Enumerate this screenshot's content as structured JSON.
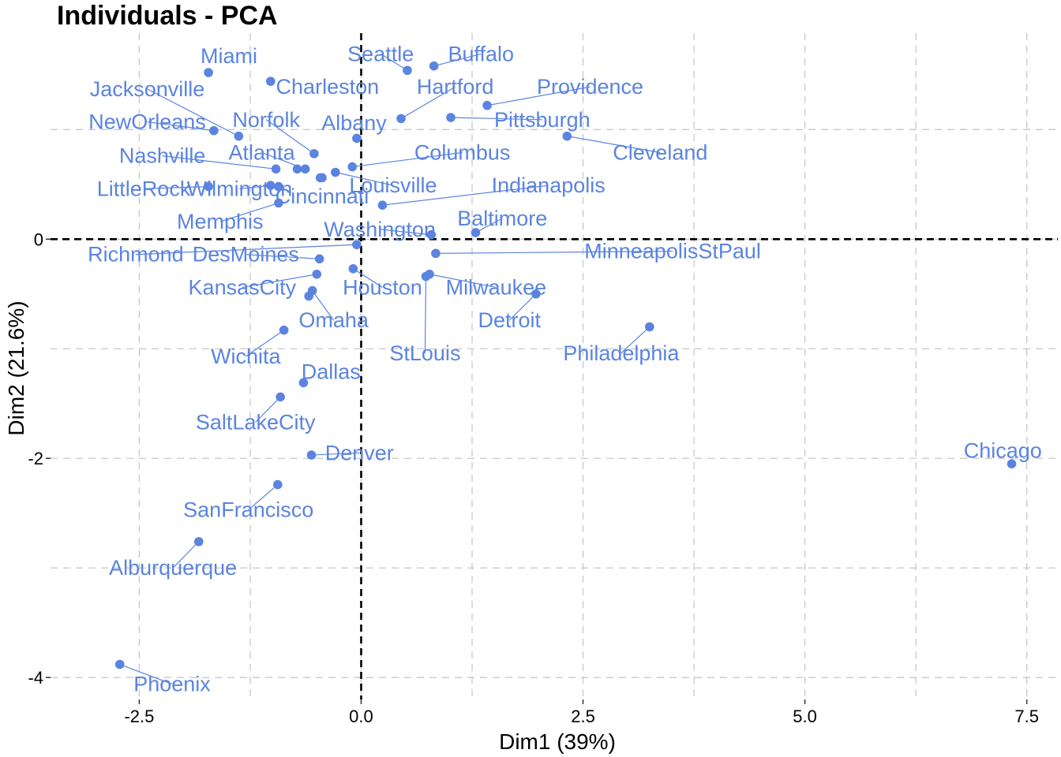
{
  "chart_data": {
    "type": "scatter",
    "title": "Individuals - PCA",
    "xlabel": "Dim1 (39%)",
    "ylabel": "Dim2 (21.6%)",
    "xlim": [
      -3.5,
      7.85
    ],
    "ylim": [
      -4.2,
      1.88
    ],
    "xticks": [
      -2.5,
      0.0,
      2.5,
      5.0,
      7.5
    ],
    "xtick_labels": [
      "-2.5",
      "0.0",
      "2.5",
      "5.0",
      "7.5"
    ],
    "yticks": [
      -4,
      -2,
      0
    ],
    "ytick_labels": [
      "-4",
      "-2",
      "0"
    ],
    "grid": true,
    "point_color": "#5b84e0",
    "points": [
      {
        "name": "Miami",
        "x": -1.72,
        "y": 1.52,
        "lx": -1.49,
        "ly": 1.67,
        "anchor": "middle"
      },
      {
        "name": "Charleston",
        "x": -1.02,
        "y": 1.44,
        "lx": -0.96,
        "ly": 1.39,
        "anchor": "start"
      },
      {
        "name": "Seattle",
        "x": 0.52,
        "y": 1.54,
        "lx": 0.22,
        "ly": 1.69,
        "anchor": "middle"
      },
      {
        "name": "Buffalo",
        "x": 0.82,
        "y": 1.58,
        "lx": 1.35,
        "ly": 1.69,
        "anchor": "middle"
      },
      {
        "name": "Jacksonville",
        "x": -1.38,
        "y": 0.94,
        "lx": -2.41,
        "ly": 1.37,
        "anchor": "middle"
      },
      {
        "name": "Hartford",
        "x": 0.45,
        "y": 1.1,
        "lx": 1.06,
        "ly": 1.39,
        "anchor": "middle"
      },
      {
        "name": "Providence",
        "x": 1.42,
        "y": 1.22,
        "lx": 2.58,
        "ly": 1.39,
        "anchor": "middle"
      },
      {
        "name": "NewOrleans",
        "x": -1.66,
        "y": 0.99,
        "lx": -2.41,
        "ly": 1.07,
        "anchor": "middle"
      },
      {
        "name": "Norfolk",
        "x": -0.53,
        "y": 0.78,
        "lx": -1.07,
        "ly": 1.09,
        "anchor": "middle"
      },
      {
        "name": "Albany",
        "x": -0.05,
        "y": 0.92,
        "lx": -0.08,
        "ly": 1.06,
        "anchor": "middle"
      },
      {
        "name": "Pittsburgh",
        "x": 1.01,
        "y": 1.11,
        "lx": 2.04,
        "ly": 1.09,
        "anchor": "middle"
      },
      {
        "name": "Cleveland",
        "x": 2.32,
        "y": 0.94,
        "lx": 3.37,
        "ly": 0.79,
        "anchor": "middle"
      },
      {
        "name": "Atlanta",
        "x": -0.63,
        "y": 0.64,
        "lx": -1.12,
        "ly": 0.79,
        "anchor": "middle"
      },
      {
        "name": "Columbus",
        "x": -0.1,
        "y": 0.66,
        "lx": 1.14,
        "ly": 0.79,
        "anchor": "middle"
      },
      {
        "name": "Nashville",
        "x": -0.96,
        "y": 0.64,
        "lx": -2.24,
        "ly": 0.76,
        "anchor": "middle"
      },
      {
        "name": "Louisville",
        "x": -0.29,
        "y": 0.61,
        "lx": 0.36,
        "ly": 0.49,
        "anchor": "middle"
      },
      {
        "name": "Indianapolis",
        "x": 0.24,
        "y": 0.31,
        "lx": 2.11,
        "ly": 0.49,
        "anchor": "middle"
      },
      {
        "name": "LittleRock",
        "x": -1.72,
        "y": 0.48,
        "lx": -2.45,
        "ly": 0.46,
        "anchor": "middle"
      },
      {
        "name": "Wilmington",
        "x": -1.02,
        "y": 0.49,
        "lx": -1.37,
        "ly": 0.46,
        "anchor": "middle"
      },
      {
        "name": "Cincinnati",
        "x": -0.44,
        "y": 0.56,
        "lx": -0.44,
        "ly": 0.39,
        "anchor": "middle"
      },
      {
        "name": "Memphis",
        "x": -0.93,
        "y": 0.33,
        "lx": -1.59,
        "ly": 0.16,
        "anchor": "middle"
      },
      {
        "name": "Baltimore",
        "x": 1.29,
        "y": 0.06,
        "lx": 1.59,
        "ly": 0.19,
        "anchor": "middle"
      },
      {
        "name": "Washington",
        "x": 0.79,
        "y": 0.04,
        "lx": 0.21,
        "ly": 0.09,
        "anchor": "middle"
      },
      {
        "name": "MinneapolisStPaul",
        "x": 0.84,
        "y": -0.13,
        "lx": 3.51,
        "ly": -0.11,
        "anchor": "middle"
      },
      {
        "name": "Richmond",
        "x": -0.05,
        "y": -0.05,
        "lx": -2.54,
        "ly": -0.14,
        "anchor": "middle"
      },
      {
        "name": "DesMoines",
        "x": -0.47,
        "y": -0.18,
        "lx": -1.3,
        "ly": -0.14,
        "anchor": "middle"
      },
      {
        "name": "Milwaukee",
        "x": 0.77,
        "y": -0.32,
        "lx": 1.52,
        "ly": -0.44,
        "anchor": "middle"
      },
      {
        "name": "KansasCity",
        "x": -0.5,
        "y": -0.32,
        "lx": -1.34,
        "ly": -0.44,
        "anchor": "middle"
      },
      {
        "name": "Houston",
        "x": -0.09,
        "y": -0.27,
        "lx": 0.24,
        "ly": -0.44,
        "anchor": "middle"
      },
      {
        "name": "Omaha",
        "x": -0.55,
        "y": -0.47,
        "lx": -0.31,
        "ly": -0.74,
        "anchor": "middle"
      },
      {
        "name": "Detroit",
        "x": 1.97,
        "y": -0.5,
        "lx": 1.67,
        "ly": -0.74,
        "anchor": "middle"
      },
      {
        "name": "StLouis",
        "x": 0.73,
        "y": -0.34,
        "lx": 0.72,
        "ly": -1.04,
        "anchor": "middle"
      },
      {
        "name": "Philadelphia",
        "x": 3.25,
        "y": -0.8,
        "lx": 2.93,
        "ly": -1.04,
        "anchor": "middle"
      },
      {
        "name": "Wichita",
        "x": -0.87,
        "y": -0.83,
        "lx": -1.3,
        "ly": -1.07,
        "anchor": "middle"
      },
      {
        "name": "Dallas",
        "x": -0.65,
        "y": -1.31,
        "lx": -0.34,
        "ly": -1.21,
        "anchor": "middle"
      },
      {
        "name": "SaltLakeCity",
        "x": -0.91,
        "y": -1.44,
        "lx": -1.19,
        "ly": -1.67,
        "anchor": "middle"
      },
      {
        "name": "Denver",
        "x": -0.56,
        "y": -1.97,
        "lx": -0.02,
        "ly": -1.95,
        "anchor": "middle"
      },
      {
        "name": "Chicago",
        "x": 7.33,
        "y": -2.05,
        "lx": 7.23,
        "ly": -1.93,
        "anchor": "middle"
      },
      {
        "name": "SanFrancisco",
        "x": -0.94,
        "y": -2.24,
        "lx": -1.27,
        "ly": -2.47,
        "anchor": "middle"
      },
      {
        "name": "Alburquerque",
        "x": -1.83,
        "y": -2.76,
        "lx": -2.12,
        "ly": -3.0,
        "anchor": "middle"
      },
      {
        "name": "Phoenix",
        "x": -2.72,
        "y": -3.88,
        "lx": -2.13,
        "ly": -4.06,
        "anchor": "middle"
      }
    ],
    "extra_points": [
      {
        "x": -0.72,
        "y": 0.64
      },
      {
        "x": -0.46,
        "y": 0.56
      },
      {
        "x": -0.93,
        "y": 0.48
      },
      {
        "x": -0.59,
        "y": -0.52
      }
    ]
  }
}
